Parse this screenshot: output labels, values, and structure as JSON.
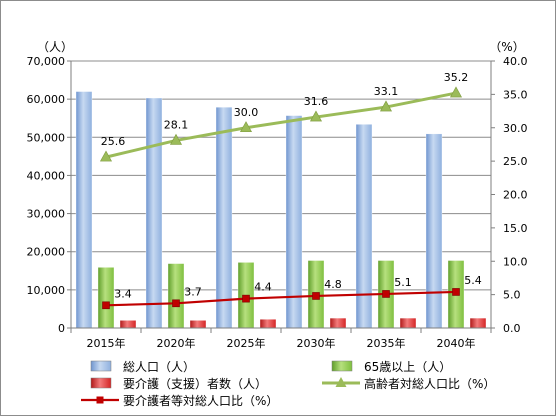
{
  "chart_data": {
    "type": "bar",
    "categories": [
      "2015年",
      "2020年",
      "2025年",
      "2030年",
      "2035年",
      "2040年"
    ],
    "left_axis": {
      "unit_label": "（人）",
      "ylim": [
        0,
        70000
      ],
      "ticks": [
        "0",
        "10,000",
        "20,000",
        "30,000",
        "40,000",
        "50,000",
        "60,000",
        "70,000"
      ]
    },
    "right_axis": {
      "unit_label": "（%）",
      "ylim": [
        0,
        40
      ],
      "ticks": [
        "0.0",
        "5.0",
        "10.0",
        "15.0",
        "20.0",
        "25.0",
        "30.0",
        "35.0",
        "40.0"
      ]
    },
    "grid": true,
    "legend_position": "bottom",
    "series": [
      {
        "name": "総人口（人）",
        "kind": "bar",
        "axis": "left",
        "color": "#8db3e2",
        "values": [
          62000,
          60300,
          57900,
          55700,
          53400,
          50900
        ]
      },
      {
        "name": "65歳以上（人）",
        "kind": "bar",
        "axis": "left",
        "color": "#92d050",
        "values": [
          15900,
          16900,
          17200,
          17700,
          17700,
          17700
        ]
      },
      {
        "name": "要介護（支援）者数（人）",
        "kind": "bar",
        "axis": "left",
        "color": "#e03030",
        "values": [
          2000,
          2000,
          2300,
          2600,
          2600,
          2600
        ]
      },
      {
        "name": "高齢者対総人口比（%）",
        "kind": "line",
        "axis": "right",
        "color": "#9bbb59",
        "values": [
          25.6,
          28.1,
          30.0,
          31.6,
          33.1,
          35.2
        ],
        "labels": [
          "25.6",
          "28.1",
          "30.0",
          "31.6",
          "33.1",
          "35.2"
        ]
      },
      {
        "name": "要介護者等対総人口比（%）",
        "kind": "line",
        "axis": "right",
        "color": "#c00000",
        "values": [
          3.4,
          3.7,
          4.4,
          4.8,
          5.1,
          5.4
        ],
        "labels": [
          "3.4",
          "3.7",
          "4.4",
          "4.8",
          "5.1",
          "5.4"
        ]
      }
    ]
  }
}
